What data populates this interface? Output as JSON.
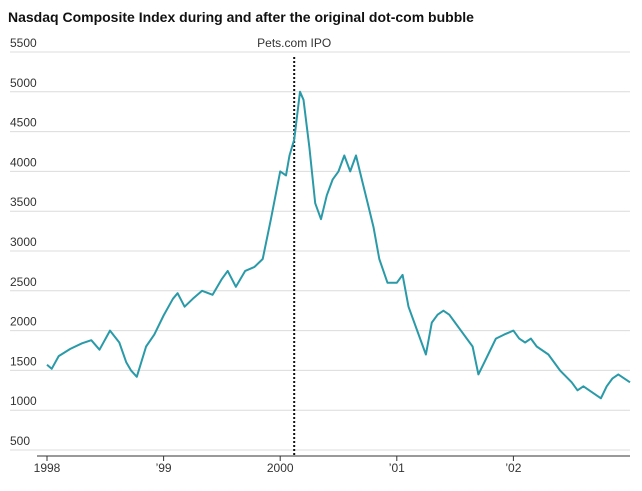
{
  "chart_data": {
    "type": "line",
    "title": "Nasdaq Composite Index during and after the original dot-com bubble",
    "annotations": [
      {
        "label": "Pets.com IPO",
        "x": 2000.12
      }
    ],
    "series": [
      {
        "name": "Nasdaq Composite",
        "color": "#2a9aa8",
        "x": [
          1998.0,
          1998.04,
          1998.1,
          1998.2,
          1998.3,
          1998.38,
          1998.45,
          1998.54,
          1998.62,
          1998.68,
          1998.72,
          1998.77,
          1998.85,
          1998.92,
          1999.0,
          1999.08,
          1999.12,
          1999.18,
          1999.25,
          1999.33,
          1999.42,
          1999.5,
          1999.55,
          1999.62,
          1999.7,
          1999.78,
          1999.85,
          1999.92,
          2000.0,
          2000.05,
          2000.08,
          2000.12,
          2000.17,
          2000.2,
          2000.25,
          2000.3,
          2000.35,
          2000.4,
          2000.45,
          2000.5,
          2000.55,
          2000.6,
          2000.65,
          2000.7,
          2000.75,
          2000.8,
          2000.85,
          2000.92,
          2001.0,
          2001.05,
          2001.1,
          2001.15,
          2001.2,
          2001.25,
          2001.3,
          2001.35,
          2001.4,
          2001.45,
          2001.5,
          2001.55,
          2001.6,
          2001.65,
          2001.7,
          2001.75,
          2001.8,
          2001.85,
          2001.92,
          2002.0,
          2002.05,
          2002.1,
          2002.15,
          2002.2,
          2002.3,
          2002.4,
          2002.5,
          2002.55,
          2002.6,
          2002.65,
          2002.75,
          2002.8,
          2002.85,
          2002.9,
          2002.95,
          2003.0
        ],
        "values": [
          1570,
          1520,
          1680,
          1770,
          1840,
          1880,
          1760,
          2000,
          1850,
          1600,
          1500,
          1420,
          1800,
          1950,
          2190,
          2400,
          2470,
          2300,
          2400,
          2500,
          2450,
          2650,
          2750,
          2550,
          2750,
          2800,
          2900,
          3400,
          4000,
          3950,
          4200,
          4400,
          5000,
          4900,
          4300,
          3600,
          3400,
          3700,
          3900,
          4000,
          4200,
          4000,
          4200,
          3900,
          3600,
          3300,
          2900,
          2600,
          2600,
          2700,
          2300,
          2100,
          1900,
          1700,
          2100,
          2200,
          2250,
          2200,
          2100,
          2000,
          1900,
          1800,
          1450,
          1600,
          1750,
          1900,
          1950,
          2000,
          1900,
          1850,
          1900,
          1800,
          1700,
          1500,
          1350,
          1250,
          1300,
          1250,
          1150,
          1300,
          1400,
          1450,
          1400,
          1350
        ]
      }
    ],
    "xlim": [
      1998,
      2003
    ],
    "xticks": [
      1998,
      {
        "value": 1999,
        "label": "’99"
      },
      2000,
      {
        "value": 2001,
        "label": "’01"
      },
      {
        "value": 2002,
        "label": "’02"
      }
    ],
    "ylim": [
      500,
      5500
    ],
    "yticks": [
      500,
      1000,
      1500,
      2000,
      2500,
      3000,
      3500,
      4000,
      4500,
      5000,
      5500
    ],
    "grid": true
  }
}
